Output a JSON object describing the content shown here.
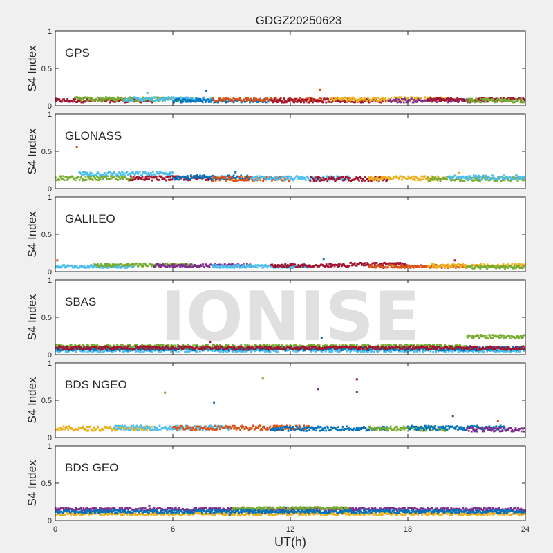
{
  "chart_data": {
    "type": "scatter",
    "title": "GDGZ20250623",
    "xlabel": "UT(h)",
    "ylabel": "S4 Index",
    "xlim": [
      0,
      24
    ],
    "ylim": [
      0,
      1
    ],
    "x_ticks": [
      0,
      6,
      12,
      18,
      24
    ],
    "y_ticks": [
      0,
      0.5,
      1
    ],
    "grid": false,
    "watermark": "IONISE",
    "series_colors": [
      "#0072bd",
      "#d95319",
      "#edb120",
      "#7e2f8e",
      "#77ac30",
      "#4dbeee",
      "#a2142f"
    ],
    "panels": [
      {
        "name": "GPS",
        "baseline": 0.07,
        "noise": 0.025,
        "segments": [
          {
            "x": [
              0,
              5
            ],
            "color_index": 6,
            "level": 0.07
          },
          {
            "x": [
              1,
              7
            ],
            "color_index": 4,
            "level": 0.09
          },
          {
            "x": [
              3.5,
              8
            ],
            "color_index": 5,
            "level": 0.09
          },
          {
            "x": [
              6,
              11
            ],
            "color_index": 0,
            "level": 0.07
          },
          {
            "x": [
              8,
              14
            ],
            "color_index": 1,
            "level": 0.08
          },
          {
            "x": [
              11,
              17
            ],
            "color_index": 6,
            "level": 0.07
          },
          {
            "x": [
              14,
              20
            ],
            "color_index": 2,
            "level": 0.09
          },
          {
            "x": [
              17,
              22
            ],
            "color_index": 3,
            "level": 0.07
          },
          {
            "x": [
              19,
              24
            ],
            "color_index": 6,
            "level": 0.08
          },
          {
            "x": [
              21,
              24
            ],
            "color_index": 4,
            "level": 0.07
          }
        ],
        "outliers": [
          {
            "x": 7.7,
            "y": 0.2,
            "color_index": 0
          },
          {
            "x": 13.5,
            "y": 0.21,
            "color_index": 1
          },
          {
            "x": 4.7,
            "y": 0.17,
            "color_index": 5
          }
        ]
      },
      {
        "name": "GLONASS",
        "baseline": 0.14,
        "noise": 0.03,
        "segments": [
          {
            "x": [
              0,
              4
            ],
            "color_index": 4,
            "level": 0.14
          },
          {
            "x": [
              1.2,
              6
            ],
            "color_index": 5,
            "level": 0.2
          },
          {
            "x": [
              3.8,
              8
            ],
            "color_index": 6,
            "level": 0.14
          },
          {
            "x": [
              6,
              10
            ],
            "color_index": 0,
            "level": 0.15
          },
          {
            "x": [
              8,
              12
            ],
            "color_index": 1,
            "level": 0.13
          },
          {
            "x": [
              10,
              15
            ],
            "color_index": 5,
            "level": 0.14
          },
          {
            "x": [
              13,
              17
            ],
            "color_index": 6,
            "level": 0.13
          },
          {
            "x": [
              16,
              20
            ],
            "color_index": 2,
            "level": 0.14
          },
          {
            "x": [
              19,
              24
            ],
            "color_index": 4,
            "level": 0.13
          },
          {
            "x": [
              20,
              24
            ],
            "color_index": 5,
            "level": 0.15
          }
        ],
        "outliers": [
          {
            "x": 1.1,
            "y": 0.56,
            "color_index": 1
          },
          {
            "x": 9.2,
            "y": 0.22,
            "color_index": 0
          },
          {
            "x": 20.6,
            "y": 0.21,
            "color_index": 2
          }
        ]
      },
      {
        "name": "GALILEO",
        "baseline": 0.07,
        "noise": 0.02,
        "segments": [
          {
            "x": [
              0,
              4
            ],
            "color_index": 5,
            "level": 0.07
          },
          {
            "x": [
              2,
              7
            ],
            "color_index": 4,
            "level": 0.09
          },
          {
            "x": [
              5,
              10
            ],
            "color_index": 3,
            "level": 0.08
          },
          {
            "x": [
              8,
              13
            ],
            "color_index": 5,
            "level": 0.07
          },
          {
            "x": [
              11,
              15
            ],
            "color_index": 6,
            "level": 0.08
          },
          {
            "x": [
              15,
              18
            ],
            "color_index": 6,
            "level": 0.1
          },
          {
            "x": [
              16,
              21
            ],
            "color_index": 1,
            "level": 0.07
          },
          {
            "x": [
              19,
              24
            ],
            "color_index": 2,
            "level": 0.08
          },
          {
            "x": [
              21,
              24
            ],
            "color_index": 4,
            "level": 0.06
          }
        ],
        "outliers": [
          {
            "x": 0.1,
            "y": 0.15,
            "color_index": 1
          },
          {
            "x": 13.7,
            "y": 0.17,
            "color_index": 0
          },
          {
            "x": 20.4,
            "y": 0.15,
            "color_index": 6
          }
        ]
      },
      {
        "name": "SBAS",
        "baseline": 0.08,
        "noise": 0.025,
        "segments": [
          {
            "x": [
              0,
              24
            ],
            "color_index": 5,
            "level": 0.06
          },
          {
            "x": [
              0,
              24
            ],
            "color_index": 0,
            "level": 0.08
          },
          {
            "x": [
              0,
              21
            ],
            "color_index": 4,
            "level": 0.11
          },
          {
            "x": [
              21,
              24
            ],
            "color_index": 4,
            "level": 0.24
          },
          {
            "x": [
              0,
              24
            ],
            "color_index": 6,
            "level": 0.09
          }
        ],
        "outliers": [
          {
            "x": 13.6,
            "y": 0.22,
            "color_index": 0
          },
          {
            "x": 7.9,
            "y": 0.17,
            "color_index": 6
          }
        ]
      },
      {
        "name": "BDS NGEO",
        "baseline": 0.13,
        "noise": 0.03,
        "segments": [
          {
            "x": [
              0,
              5
            ],
            "color_index": 2,
            "level": 0.12
          },
          {
            "x": [
              3,
              9
            ],
            "color_index": 5,
            "level": 0.13
          },
          {
            "x": [
              6,
              13
            ],
            "color_index": 1,
            "level": 0.13
          },
          {
            "x": [
              11,
              17
            ],
            "color_index": 0,
            "level": 0.12
          },
          {
            "x": [
              16,
              20
            ],
            "color_index": 4,
            "level": 0.12
          },
          {
            "x": [
              18,
              23
            ],
            "color_index": 0,
            "level": 0.13
          },
          {
            "x": [
              21,
              24
            ],
            "color_index": 3,
            "level": 0.11
          }
        ],
        "outliers": [
          {
            "x": 5.6,
            "y": 0.6,
            "color_index": 4
          },
          {
            "x": 8.1,
            "y": 0.47,
            "color_index": 0
          },
          {
            "x": 10.6,
            "y": 0.79,
            "color_index": 4
          },
          {
            "x": 13.4,
            "y": 0.65,
            "color_index": 3
          },
          {
            "x": 15.4,
            "y": 0.78,
            "color_index": 6
          },
          {
            "x": 15.4,
            "y": 0.61,
            "color_index": 3
          },
          {
            "x": 20.3,
            "y": 0.29,
            "color_index": 3
          },
          {
            "x": 22.6,
            "y": 0.22,
            "color_index": 1
          }
        ]
      },
      {
        "name": "BDS GEO",
        "baseline": 0.13,
        "noise": 0.02,
        "segments": [
          {
            "x": [
              0,
              24
            ],
            "color_index": 2,
            "level": 0.09
          },
          {
            "x": [
              0,
              24
            ],
            "color_index": 3,
            "level": 0.15
          },
          {
            "x": [
              9,
              15
            ],
            "color_index": 4,
            "level": 0.16
          },
          {
            "x": [
              0,
              24
            ],
            "color_index": 0,
            "level": 0.12
          }
        ],
        "outliers": [
          {
            "x": 4.8,
            "y": 0.2,
            "color_index": 3
          },
          {
            "x": 8.9,
            "y": 0.08,
            "color_index": 0
          }
        ]
      }
    ]
  }
}
